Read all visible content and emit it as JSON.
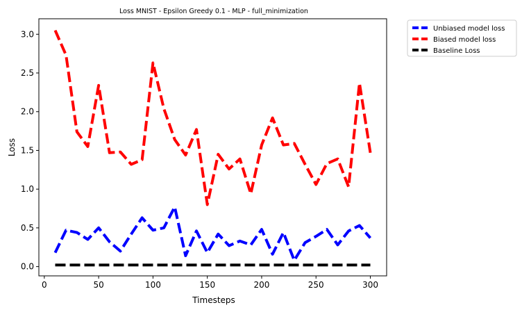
{
  "chart_data": {
    "type": "line",
    "title": "Loss MNIST - Epsilon Greedy 0.1 - MLP - full_minimization",
    "xlabel": "Timesteps",
    "ylabel": "Loss",
    "xlim": [
      -5,
      315
    ],
    "ylim": [
      -0.12,
      3.2
    ],
    "xticks": [
      0,
      50,
      100,
      150,
      200,
      250,
      300
    ],
    "yticks": [
      0.0,
      0.5,
      1.0,
      1.5,
      2.0,
      2.5,
      3.0
    ],
    "grid": false,
    "legend_position": "outside-top-right",
    "x": [
      10,
      20,
      30,
      40,
      50,
      60,
      70,
      80,
      90,
      100,
      110,
      120,
      130,
      140,
      150,
      160,
      170,
      180,
      190,
      200,
      210,
      220,
      230,
      240,
      250,
      260,
      270,
      280,
      290,
      300
    ],
    "series": [
      {
        "name": "Unbiased model loss",
        "color": "#0000ff",
        "values": [
          0.18,
          0.47,
          0.44,
          0.35,
          0.5,
          0.32,
          0.2,
          0.42,
          0.63,
          0.47,
          0.5,
          0.77,
          0.14,
          0.46,
          0.18,
          0.42,
          0.27,
          0.33,
          0.28,
          0.48,
          0.16,
          0.44,
          0.08,
          0.31,
          0.39,
          0.48,
          0.28,
          0.46,
          0.53,
          0.37
        ]
      },
      {
        "name": "Biased model loss",
        "color": "#ff0000",
        "values": [
          3.05,
          2.73,
          1.74,
          1.55,
          2.34,
          1.47,
          1.48,
          1.32,
          1.38,
          2.63,
          2.04,
          1.64,
          1.44,
          1.77,
          0.8,
          1.45,
          1.26,
          1.39,
          0.94,
          1.57,
          1.92,
          1.57,
          1.59,
          1.32,
          1.06,
          1.33,
          1.39,
          1.03,
          2.37,
          1.47
        ]
      },
      {
        "name": "Baseline Loss",
        "color": "#000000",
        "values": [
          0.02,
          0.02,
          0.02,
          0.02,
          0.02,
          0.02,
          0.02,
          0.02,
          0.02,
          0.02,
          0.02,
          0.02,
          0.02,
          0.02,
          0.02,
          0.02,
          0.02,
          0.02,
          0.02,
          0.02,
          0.02,
          0.02,
          0.02,
          0.02,
          0.02,
          0.02,
          0.02,
          0.02,
          0.02,
          0.02
        ]
      }
    ]
  }
}
